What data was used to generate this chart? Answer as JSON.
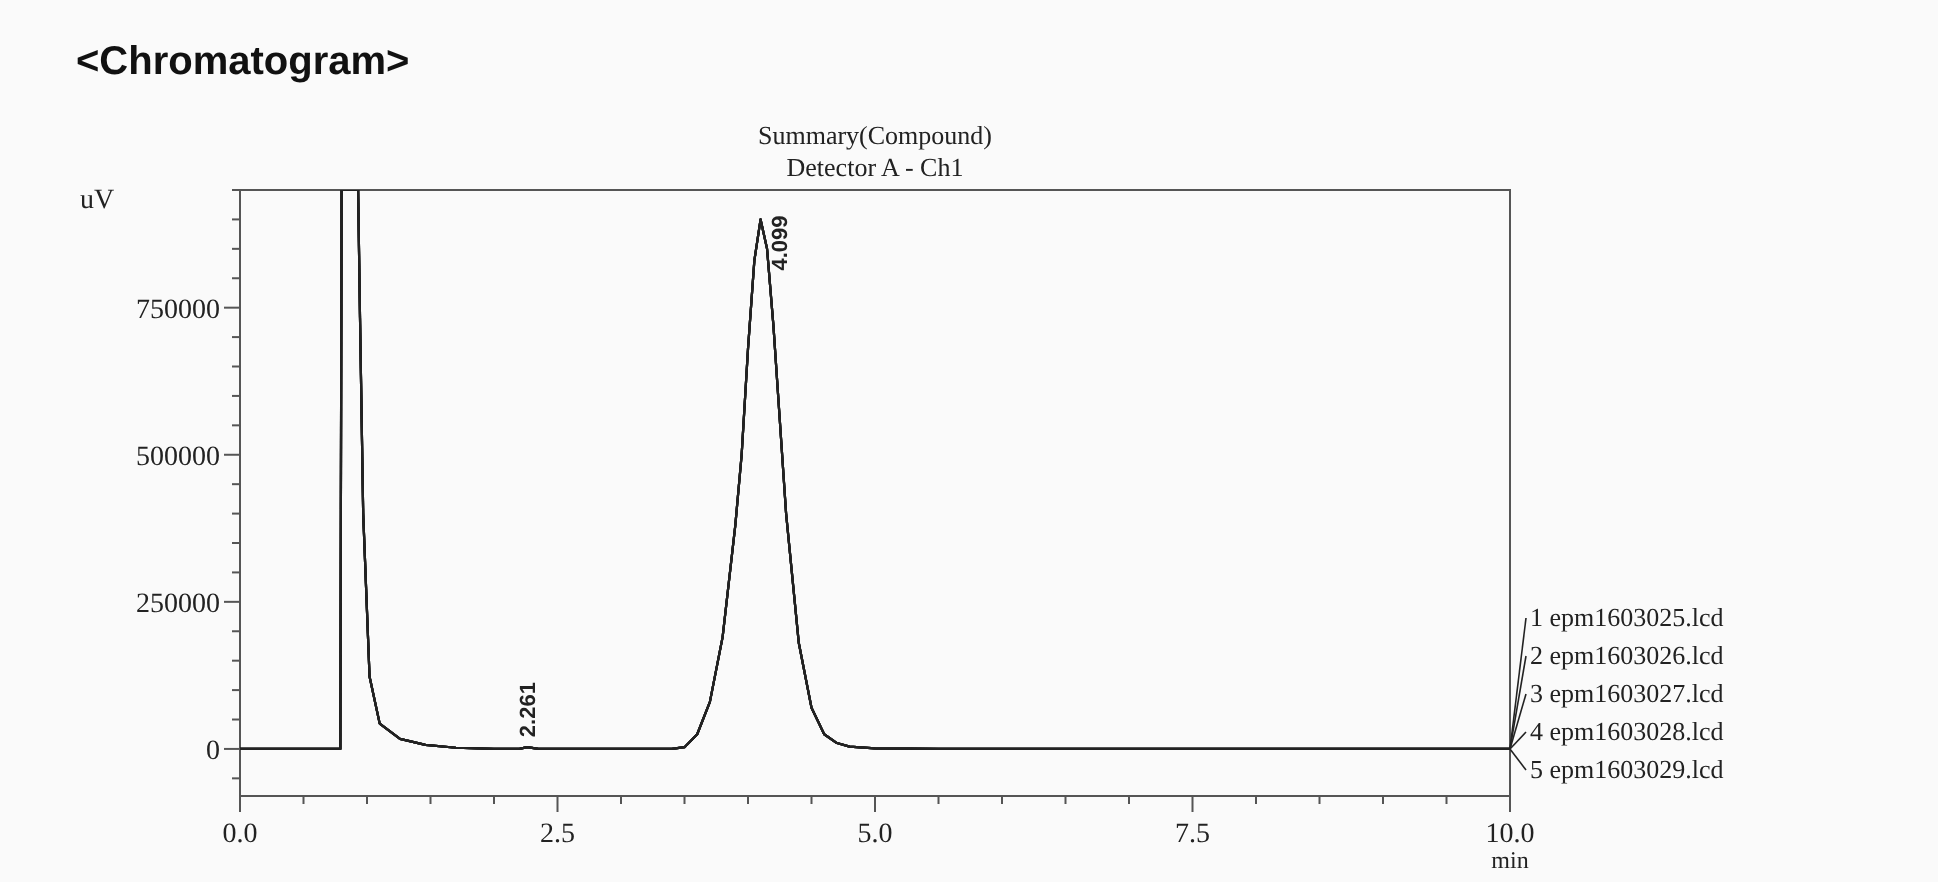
{
  "chart_data": {
    "type": "line",
    "title": "<Chromatogram>",
    "subtitle": "Summary(Compound)\nDetector A - Ch1",
    "xlabel": "min",
    "ylabel": "uV",
    "x": [
      0,
      0.79,
      0.8,
      0.93,
      0.945,
      0.97,
      1.02,
      1.1,
      1.26,
      1.46,
      1.7,
      2.0,
      2.2,
      2.261,
      2.35,
      3.4,
      3.5,
      3.6,
      3.7,
      3.8,
      3.9,
      3.95,
      4.0,
      4.05,
      4.099,
      4.15,
      4.2,
      4.25,
      4.3,
      4.4,
      4.5,
      4.6,
      4.7,
      4.8,
      5.0,
      5.5,
      10
    ],
    "series": [
      {
        "name": "1 epm1603025.lcd",
        "color": "#222222",
        "values": [
          0,
          0,
          950000,
          950000,
          733000,
          400000,
          123000,
          43000,
          17000,
          7000,
          2000,
          0,
          0,
          3000,
          0,
          0,
          3000,
          25000,
          80000,
          190000,
          380000,
          500000,
          680000,
          830000,
          900000,
          850000,
          720000,
          560000,
          400000,
          180000,
          70000,
          25000,
          10000,
          4000,
          1000,
          0,
          0
        ]
      },
      {
        "name": "2 epm1603026.lcd",
        "color": "#222222",
        "values": [
          0,
          0,
          950000,
          950000,
          733000,
          400000,
          123000,
          43000,
          17000,
          7000,
          2000,
          0,
          0,
          3000,
          0,
          0,
          3000,
          25000,
          80000,
          190000,
          380000,
          500000,
          680000,
          830000,
          900000,
          850000,
          720000,
          560000,
          400000,
          180000,
          70000,
          25000,
          10000,
          4000,
          1000,
          0,
          0
        ]
      },
      {
        "name": "3 epm1603027.lcd",
        "color": "#222222",
        "values": [
          0,
          0,
          950000,
          950000,
          733000,
          400000,
          123000,
          43000,
          17000,
          7000,
          2000,
          0,
          0,
          3000,
          0,
          0,
          3000,
          25000,
          80000,
          190000,
          380000,
          500000,
          680000,
          830000,
          900000,
          850000,
          720000,
          560000,
          400000,
          180000,
          70000,
          25000,
          10000,
          4000,
          1000,
          0,
          0
        ]
      },
      {
        "name": "4 epm1603028.lcd",
        "color": "#222222",
        "values": [
          0,
          0,
          950000,
          950000,
          733000,
          400000,
          123000,
          43000,
          17000,
          7000,
          2000,
          0,
          0,
          3000,
          0,
          0,
          3000,
          25000,
          80000,
          190000,
          380000,
          500000,
          680000,
          830000,
          900000,
          850000,
          720000,
          560000,
          400000,
          180000,
          70000,
          25000,
          10000,
          4000,
          1000,
          0,
          0
        ]
      },
      {
        "name": "5 epm1603029.lcd",
        "color": "#222222",
        "values": [
          0,
          0,
          950000,
          950000,
          733000,
          400000,
          123000,
          43000,
          17000,
          7000,
          2000,
          0,
          0,
          3000,
          0,
          0,
          3000,
          25000,
          80000,
          190000,
          380000,
          500000,
          680000,
          830000,
          900000,
          850000,
          720000,
          560000,
          400000,
          180000,
          70000,
          25000,
          10000,
          4000,
          1000,
          0,
          0
        ]
      }
    ],
    "annotations": [
      {
        "text": "2.261",
        "x": 2.261,
        "y": 3000
      },
      {
        "text": "4.099",
        "x": 4.099,
        "y": 900000
      }
    ],
    "xlim": [
      0,
      10
    ],
    "ylim": [
      -80000,
      950000
    ],
    "xticks": [
      {
        "value": 0,
        "label": "0.0"
      },
      {
        "value": 0.5,
        "label": null
      },
      {
        "value": 1,
        "label": null
      },
      {
        "value": 1.5,
        "label": null
      },
      {
        "value": 2,
        "label": null
      },
      {
        "value": 2.5,
        "label": "2.5"
      },
      {
        "value": 3,
        "label": null
      },
      {
        "value": 3.5,
        "label": null
      },
      {
        "value": 4,
        "label": null
      },
      {
        "value": 4.5,
        "label": null
      },
      {
        "value": 5,
        "label": "5.0"
      },
      {
        "value": 5.5,
        "label": null
      },
      {
        "value": 6,
        "label": null
      },
      {
        "value": 6.5,
        "label": null
      },
      {
        "value": 7,
        "label": null
      },
      {
        "value": 7.5,
        "label": "7.5"
      },
      {
        "value": 8,
        "label": null
      },
      {
        "value": 8.5,
        "label": null
      },
      {
        "value": 9,
        "label": null
      },
      {
        "value": 9.5,
        "label": null
      },
      {
        "value": 10,
        "label": "10.0"
      }
    ],
    "yticks": [
      {
        "value": -50000,
        "label": null
      },
      0,
      {
        "value": 50000,
        "label": null
      },
      {
        "value": 100000,
        "label": null
      },
      {
        "value": 150000,
        "label": null
      },
      {
        "value": 200000,
        "label": null
      },
      250000,
      {
        "value": 300000,
        "label": null
      },
      {
        "value": 350000,
        "label": null
      },
      {
        "value": 400000,
        "label": null
      },
      {
        "value": 450000,
        "label": null
      },
      500000,
      {
        "value": 550000,
        "label": null
      },
      {
        "value": 600000,
        "label": null
      },
      {
        "value": 650000,
        "label": null
      },
      {
        "value": 700000,
        "label": null
      },
      750000,
      {
        "value": 800000,
        "label": null
      },
      {
        "value": 850000,
        "label": null
      },
      {
        "value": 900000,
        "label": null
      },
      {
        "value": 950000,
        "label": null
      }
    ],
    "legend": "right",
    "grid": false,
    "line_style": "solid",
    "marker": "none"
  }
}
